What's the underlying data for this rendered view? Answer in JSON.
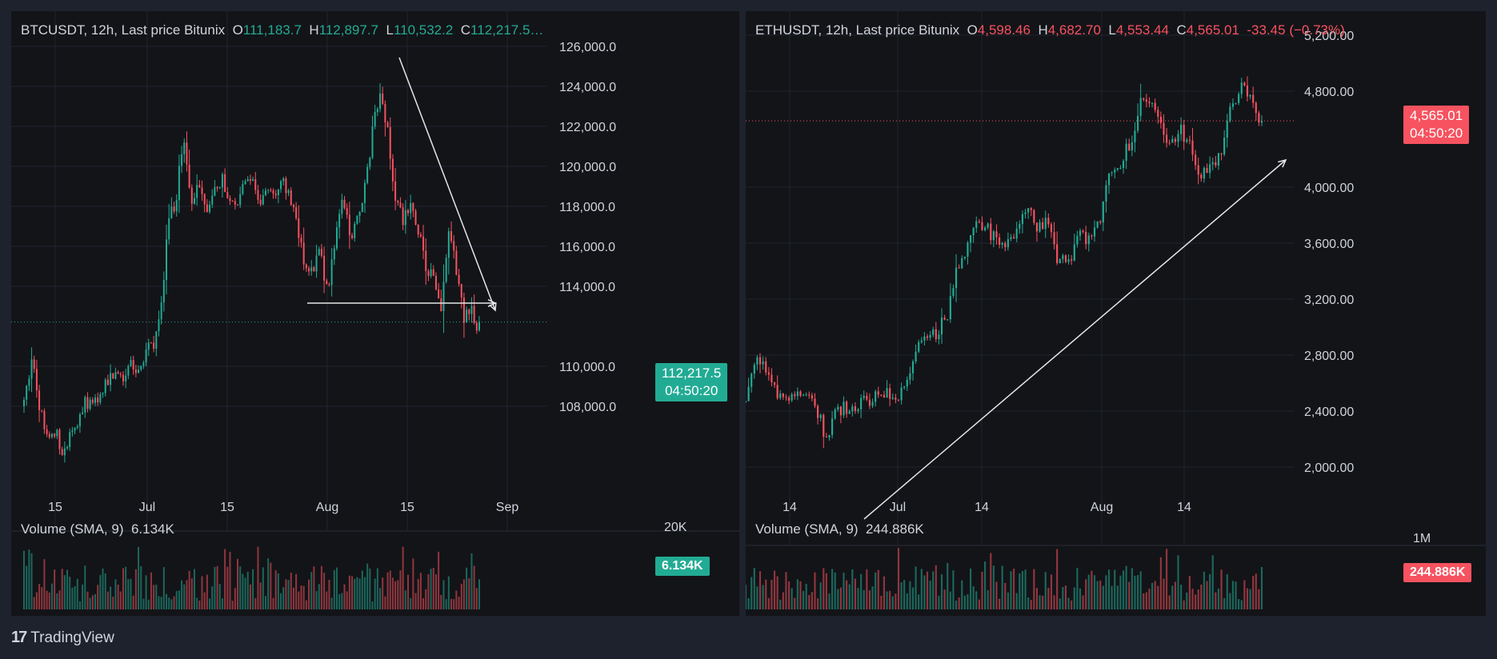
{
  "colors": {
    "up": "#22ab94",
    "down": "#f7525f",
    "panel": "#131418",
    "grid": "#22252f",
    "annot": "#e6e6e6"
  },
  "brand": {
    "name": "TradingView",
    "logo": "17"
  },
  "chart_data": [
    {
      "type": "candlestick",
      "symbol": "BTCUSDT",
      "legend": {
        "title": "BTCUSDT, 12h, Last price Bitunix",
        "o_label": "O",
        "o": "111,183.7",
        "h_label": "H",
        "h": "112,897.7",
        "l_label": "L",
        "l": "110,532.2",
        "c_label": "C",
        "c": "112,217.5…"
      },
      "yticks": [
        "126,000.0",
        "124,000.0",
        "122,000.0",
        "120,000.0",
        "118,000.0",
        "116,000.0",
        "114,000.0",
        "110,000.0",
        "108,000.0"
      ],
      "ylim": [
        106200,
        127400
      ],
      "xticks": [
        "15",
        "Jul",
        "15",
        "Aug",
        "15",
        "Sep"
      ],
      "last_price": {
        "value": "112,217.5",
        "countdown": "04:50:20"
      },
      "volume": {
        "label": "Volume (SMA, 9)",
        "sma": "6.134K",
        "tag": "6.134K",
        "axis_tick": "20K"
      },
      "annotations": [
        "descending line from the August high to about 112,800",
        "horizontal support near 112,800"
      ],
      "candles_note": "180 twelve-hour candles, early June to late August; the last candle is about 12 days before the Sep label",
      "path": [
        108000,
        110400,
        108000,
        106500,
        106800,
        105900,
        106500,
        107300,
        108200,
        108300,
        108600,
        109400,
        109600,
        109400,
        110500,
        109700,
        110700,
        111000,
        112500,
        117500,
        118000,
        121800,
        117900,
        119000,
        117700,
        118500,
        119400,
        118400,
        118100,
        119500,
        119300,
        118200,
        118500,
        118800,
        119300,
        118500,
        117000,
        115200,
        114500,
        115800,
        113500,
        116200,
        118300,
        116500,
        117300,
        119200,
        121900,
        123700,
        121500,
        118300,
        117200,
        118300,
        116800,
        115000,
        114300,
        112900,
        116800,
        114800,
        112400,
        112800,
        111600
      ]
    },
    {
      "type": "candlestick",
      "symbol": "ETHUSDT",
      "legend": {
        "title": "ETHUSDT, 12h, Last price Bitunix",
        "o_label": "O",
        "o": "4,598.46",
        "h_label": "H",
        "h": "4,682.70",
        "l_label": "L",
        "l": "4,553.44",
        "c_label": "C",
        "c": "4,565.01",
        "change": "-33.45 (−0.73%)"
      },
      "yticks": [
        "5,200.00",
        "4,800.00",
        "4,000.00",
        "3,600.00",
        "3,200.00",
        "2,800.00",
        "2,400.00",
        "2,000.00"
      ],
      "ylim": [
        1840,
        5280
      ],
      "xticks": [
        "14",
        "Jul",
        "14",
        "Aug",
        "14"
      ],
      "last_price": {
        "value": "4,565.01",
        "countdown": "04:50:20"
      },
      "volume": {
        "label": "Volume (SMA, 9)",
        "sma": "244.886K",
        "tag": "244.886K",
        "axis_tick": "1M"
      },
      "annotations": [
        "ascending trend line from about 1,700 to about 4,440"
      ],
      "candles_note": "180 twelve-hour candles, early June to late August",
      "path": [
        2480,
        2780,
        2750,
        2520,
        2500,
        2580,
        2520,
        2450,
        2200,
        2430,
        2450,
        2470,
        2500,
        2520,
        2580,
        2520,
        2600,
        2900,
        2950,
        3000,
        3150,
        3500,
        3650,
        3800,
        3750,
        3660,
        3700,
        3800,
        3870,
        3770,
        3800,
        3500,
        3550,
        3720,
        3650,
        3850,
        4200,
        4250,
        4400,
        4700,
        4750,
        4600,
        4350,
        4500,
        4400,
        4150,
        4200,
        4330,
        4700,
        4800,
        4690,
        4565
      ]
    }
  ]
}
